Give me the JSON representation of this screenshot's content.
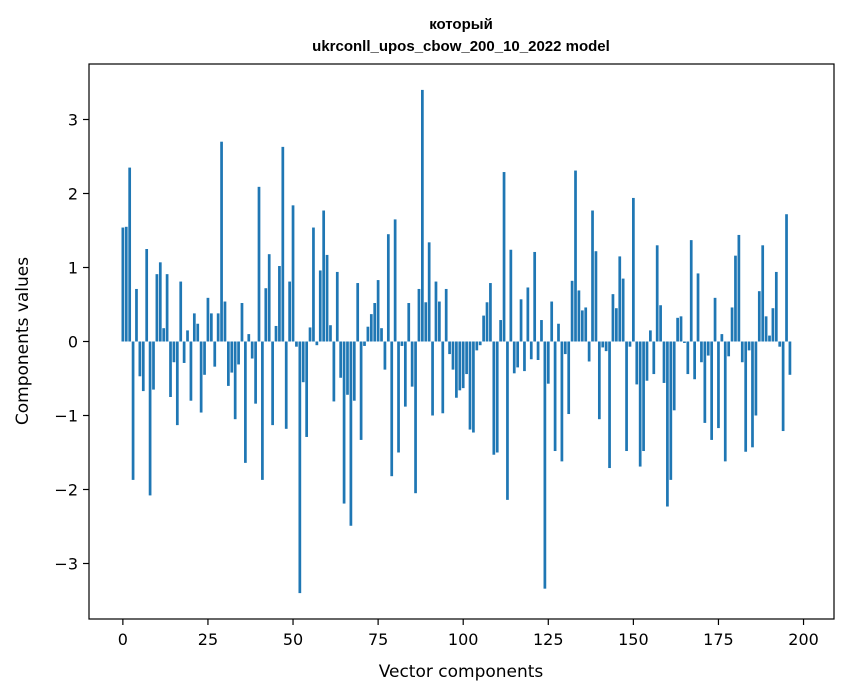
{
  "chart_data": {
    "type": "bar",
    "title_lines": [
      "который",
      "ukrconll_upos_cbow_200_10_2022 model"
    ],
    "xlabel": "Vector components",
    "ylabel": "Components values",
    "xlim": [
      -9.95,
      208.95
    ],
    "ylim": [
      -3.75,
      3.75
    ],
    "xticks": [
      0,
      25,
      50,
      75,
      100,
      125,
      150,
      175,
      200
    ],
    "yticks": [
      -3,
      -2,
      -1,
      0,
      1,
      2,
      3
    ],
    "bar_color": "#1f77b4",
    "grid": false,
    "values": [
      1.54,
      1.55,
      2.35,
      -1.87,
      0.71,
      -0.47,
      -0.67,
      1.25,
      -2.08,
      -0.65,
      0.91,
      1.07,
      0.18,
      0.91,
      -0.75,
      -0.28,
      -1.13,
      0.81,
      -0.29,
      0.15,
      -0.8,
      0.38,
      0.24,
      -0.96,
      -0.45,
      0.59,
      0.38,
      -0.34,
      0.38,
      2.7,
      0.54,
      -0.6,
      -0.42,
      -1.05,
      -0.31,
      0.52,
      -1.64,
      0.1,
      -0.23,
      -0.84,
      2.09,
      -1.87,
      0.72,
      1.18,
      -1.13,
      0.21,
      1.02,
      2.63,
      -1.18,
      0.81,
      1.84,
      -0.07,
      -3.4,
      -0.55,
      -1.29,
      0.19,
      1.54,
      -0.05,
      0.96,
      1.77,
      1.17,
      0.22,
      -0.81,
      0.94,
      -0.49,
      -2.19,
      -0.72,
      -2.49,
      -0.8,
      0.79,
      -1.33,
      -0.06,
      0.2,
      0.37,
      0.52,
      0.83,
      0.18,
      -0.38,
      1.45,
      -1.82,
      1.65,
      -1.5,
      -0.06,
      -0.88,
      0.52,
      -0.61,
      -2.05,
      0.71,
      3.4,
      0.53,
      1.34,
      -1.0,
      0.81,
      0.54,
      -0.97,
      0.71,
      -0.17,
      -0.38,
      -0.76,
      -0.66,
      -0.63,
      -0.44,
      -1.19,
      -1.23,
      -0.12,
      -0.05,
      0.35,
      0.53,
      0.79,
      -1.53,
      -1.5,
      0.29,
      2.29,
      -2.14,
      1.24,
      -0.43,
      -0.35,
      0.57,
      -0.4,
      0.73,
      -0.24,
      1.21,
      -0.25,
      0.29,
      -3.34,
      -0.57,
      0.54,
      -1.48,
      0.24,
      -1.62,
      -0.17,
      -0.98,
      0.82,
      2.31,
      0.69,
      0.42,
      0.46,
      -0.27,
      1.77,
      1.22,
      -1.05,
      -0.08,
      -0.13,
      -1.71,
      0.64,
      0.45,
      1.15,
      0.85,
      -1.48,
      -0.07,
      1.94,
      -0.58,
      -1.69,
      -1.48,
      -0.53,
      0.15,
      -0.44,
      1.3,
      0.49,
      -0.56,
      -2.23,
      -1.87,
      -0.93,
      0.32,
      0.34,
      -0.02,
      -0.44,
      1.37,
      -0.51,
      0.92,
      -0.28,
      -1.1,
      -0.19,
      -1.33,
      0.59,
      -1.17,
      0.1,
      -1.62,
      -0.2,
      0.46,
      1.16,
      1.44,
      -0.28,
      -1.49,
      -0.12,
      -1.43,
      -1.0,
      0.68,
      1.3,
      0.34,
      0.08,
      0.45,
      0.94,
      -0.07,
      -1.21,
      1.72,
      -0.45
    ]
  }
}
